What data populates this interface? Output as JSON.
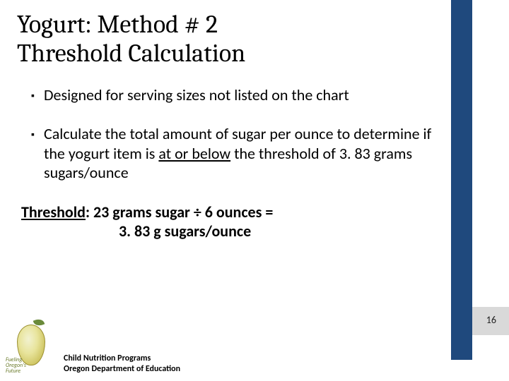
{
  "title_line1": "Yogurt: Method # 2",
  "title_line2": "Threshold Calculation",
  "bullets": [
    {
      "marker": "▪",
      "text": "Designed for serving sizes not listed on the chart"
    },
    {
      "marker": "▪",
      "pre": "Calculate the total amount of sugar per ounce to determine if the yogurt item is ",
      "under": "at or below",
      "post": " the threshold of 3. 83 grams sugars/ounce"
    }
  ],
  "threshold": {
    "label": "Threshold",
    "line1_rest": ": 23 grams sugar ÷ 6 ounces =",
    "line2": "3. 83 g sugars/ounce"
  },
  "footer": {
    "line1": "Child Nutrition Programs",
    "line2": "Oregon Department of Education"
  },
  "logo": {
    "text1": "Fueling",
    "text2": "Oregon's",
    "text3": "Future"
  },
  "page_number": "16",
  "colors": {
    "accent_bar": "#1f497d",
    "pagenum_bg": "#d9d9d9",
    "text": "#000000"
  }
}
